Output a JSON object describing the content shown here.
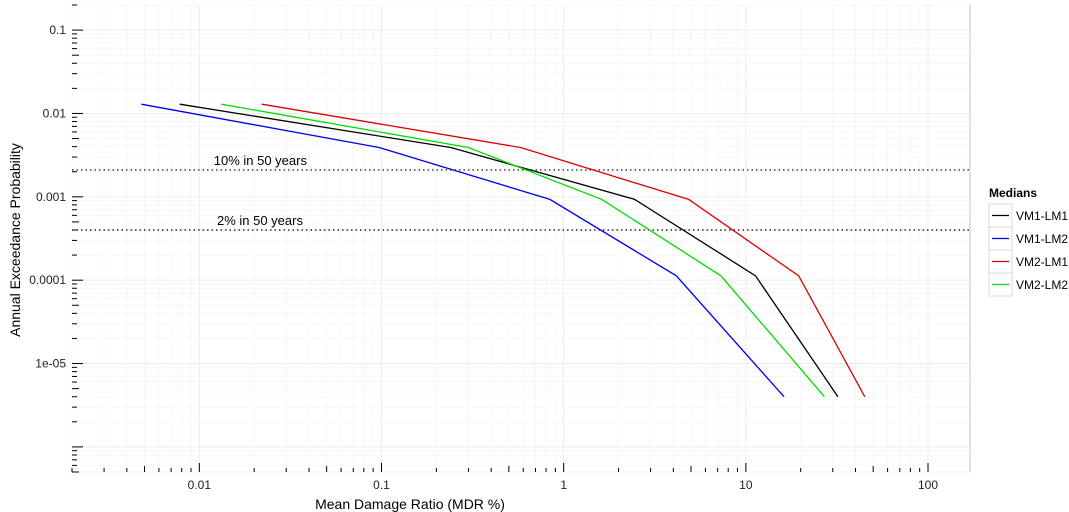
{
  "chart_data": {
    "type": "line",
    "xlabel": "Mean Damage Ratio (MDR %)",
    "ylabel": "Annual Exceedance Probability",
    "xscale": "log",
    "yscale": "log",
    "xlim": [
      0.002,
      170
    ],
    "ylim": [
      5e-07,
      0.2
    ],
    "x_ticks": [
      0.01,
      0.1,
      1,
      10,
      100
    ],
    "x_tick_labels": [
      "0.01",
      "0.1",
      "1",
      "10",
      "100"
    ],
    "y_ticks": [
      0.1,
      0.01,
      0.001,
      0.0001,
      1e-05
    ],
    "y_tick_labels": [
      "0.1",
      "0.01",
      "0.001",
      "0.0001",
      "1e-05"
    ],
    "grid": true,
    "legend": {
      "title": "Medians",
      "position": "right"
    },
    "series": [
      {
        "name": "VM1-LM1",
        "color": "#000000",
        "x": [
          0.0078,
          0.24,
          2.45,
          11.3,
          32
        ],
        "y": [
          0.0129,
          0.0039,
          0.00093,
          0.000113,
          4e-06
        ]
      },
      {
        "name": "VM1-LM2",
        "color": "#0000ee",
        "x": [
          0.0048,
          0.097,
          0.84,
          4.15,
          16.2
        ],
        "y": [
          0.0129,
          0.0039,
          0.00093,
          0.000113,
          4e-06
        ]
      },
      {
        "name": "VM2-LM1",
        "color": "#dd0000",
        "x": [
          0.022,
          0.58,
          4.85,
          19.5,
          45
        ],
        "y": [
          0.0129,
          0.0039,
          0.00093,
          0.000113,
          4e-06
        ]
      },
      {
        "name": "VM2-LM2",
        "color": "#00dd00",
        "x": [
          0.0132,
          0.3,
          1.62,
          7.3,
          27
        ],
        "y": [
          0.0129,
          0.0039,
          0.00093,
          0.000113,
          4e-06
        ]
      }
    ],
    "hlines": [
      {
        "y": 0.0021,
        "label": "10% in 50 years",
        "label_x": 0.012
      },
      {
        "y": 0.0004,
        "label": "2% in 50 years",
        "label_x": 0.0125
      }
    ]
  }
}
